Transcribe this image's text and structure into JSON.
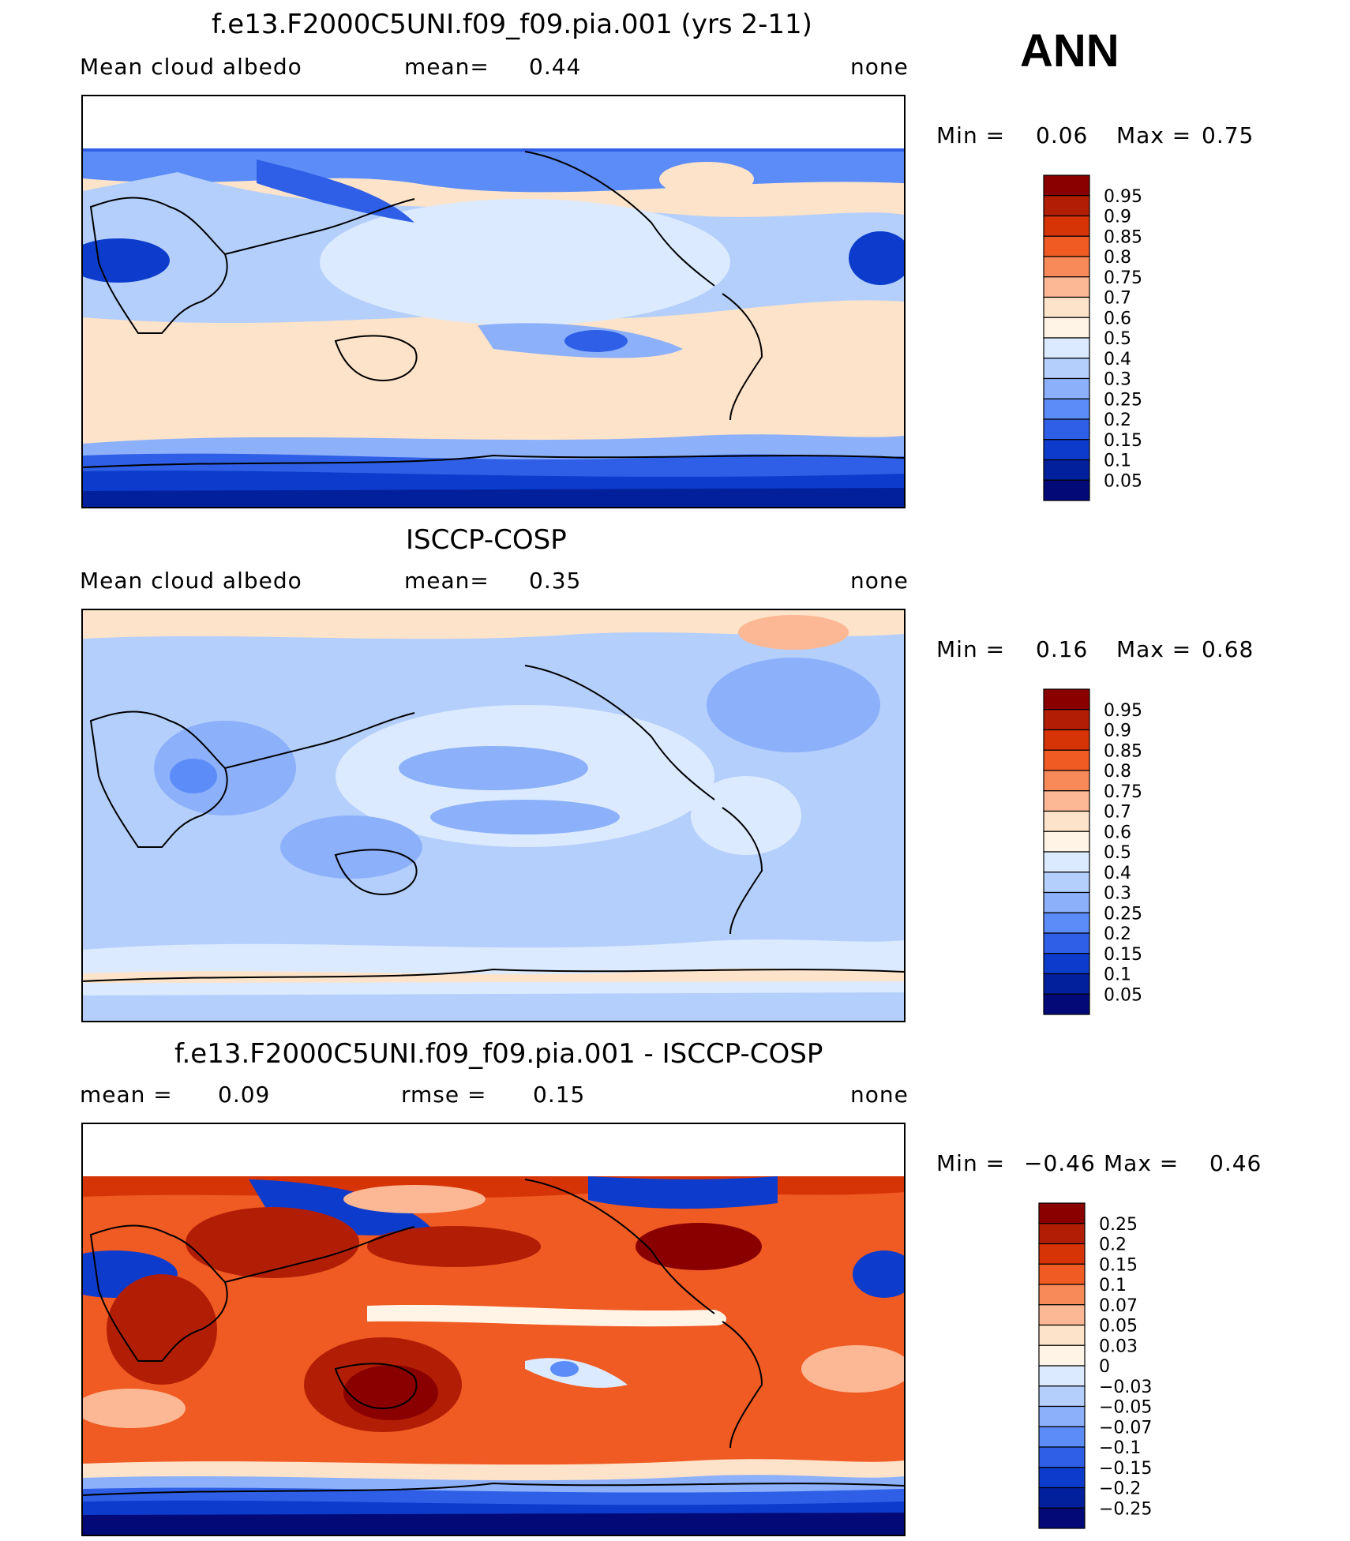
{
  "header": {
    "season": "ANN"
  },
  "panels": [
    {
      "title": "f.e13.F2000C5UNI.f09_f09.pia.001 (yrs 2-11)",
      "left_label": "Mean cloud albedo",
      "mid_label": "mean=",
      "mid_value": "0.44",
      "right_label": "none",
      "min_label": "Min =",
      "min_value": "0.06",
      "max_label": "Max =",
      "max_value": "0.75",
      "colorbar": {
        "levels": [
          "0.95",
          "0.9",
          "0.85",
          "0.8",
          "0.75",
          "0.7",
          "0.6",
          "0.5",
          "0.4",
          "0.3",
          "0.25",
          "0.2",
          "0.15",
          "0.1",
          "0.05"
        ],
        "colors": [
          "#8a0000",
          "#b21e05",
          "#d63407",
          "#f05a23",
          "#f88a59",
          "#fcb894",
          "#fde3c9",
          "#fff4e6",
          "#dbeaff",
          "#b4cffc",
          "#8cb0fa",
          "#5c8cf8",
          "#2e5fe6",
          "#0d3ccc",
          "#03209c",
          "#030a78"
        ]
      }
    },
    {
      "title": "ISCCP-COSP",
      "left_label": "Mean cloud albedo",
      "mid_label": "mean=",
      "mid_value": "0.35",
      "right_label": "none",
      "min_label": "Min =",
      "min_value": "0.16",
      "max_label": "Max =",
      "max_value": "0.68",
      "colorbar": {
        "levels": [
          "0.95",
          "0.9",
          "0.85",
          "0.8",
          "0.75",
          "0.7",
          "0.6",
          "0.5",
          "0.4",
          "0.3",
          "0.25",
          "0.2",
          "0.15",
          "0.1",
          "0.05"
        ],
        "colors": [
          "#8a0000",
          "#b21e05",
          "#d63407",
          "#f05a23",
          "#f88a59",
          "#fcb894",
          "#fde3c9",
          "#fff4e6",
          "#dbeaff",
          "#b4cffc",
          "#8cb0fa",
          "#5c8cf8",
          "#2e5fe6",
          "#0d3ccc",
          "#03209c",
          "#030a78"
        ]
      }
    },
    {
      "title": "f.e13.F2000C5UNI.f09_f09.pia.001 - ISCCP-COSP",
      "left_label": "mean =",
      "left_value": "0.09",
      "mid_label": "rmse =",
      "mid_value": "0.15",
      "right_label": "none",
      "min_label": "Min =",
      "min_value": "−0.46",
      "max_label": "Max =",
      "max_value": "0.46",
      "colorbar": {
        "levels": [
          "0.25",
          "0.2",
          "0.15",
          "0.1",
          "0.07",
          "0.05",
          "0.03",
          "0",
          "−0.03",
          "−0.05",
          "−0.07",
          "−0.1",
          "−0.15",
          "−0.2",
          "−0.25"
        ],
        "colors": [
          "#8a0000",
          "#b21e05",
          "#d63407",
          "#f05a23",
          "#f88a59",
          "#fcb894",
          "#fde3c9",
          "#fff4e6",
          "#dbeaff",
          "#b4cffc",
          "#8cb0fa",
          "#5c8cf8",
          "#2e5fe6",
          "#0d3ccc",
          "#03209c",
          "#030a78"
        ]
      }
    }
  ]
}
